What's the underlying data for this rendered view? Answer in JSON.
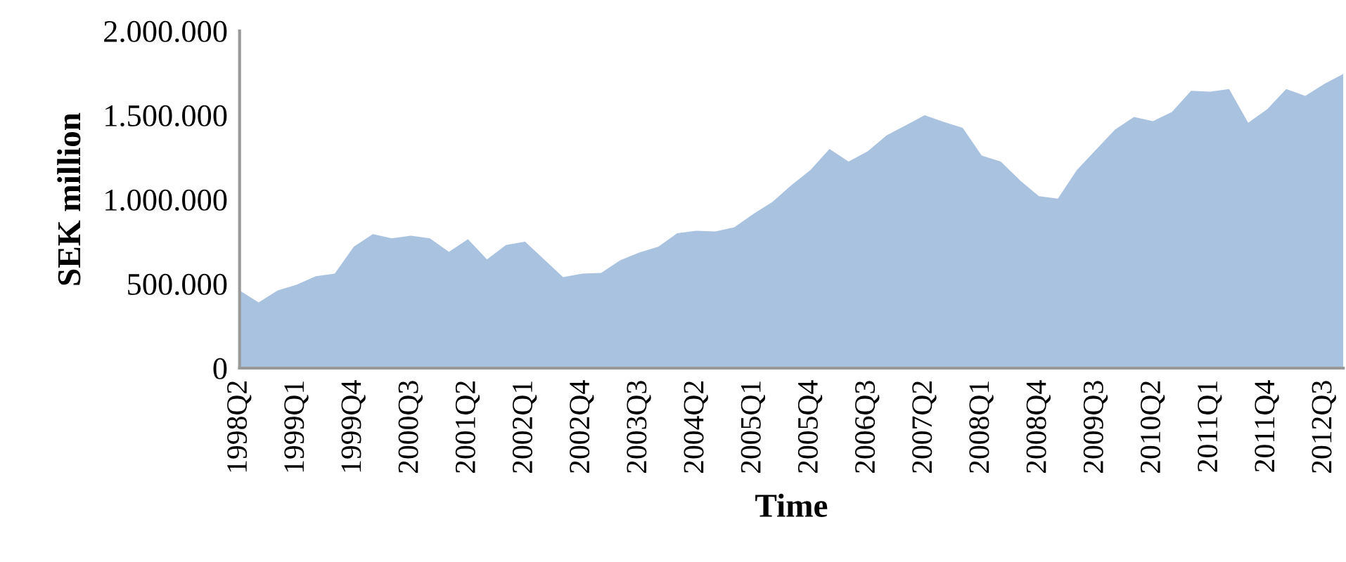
{
  "chart_data": {
    "type": "area",
    "xlabel": "Time",
    "ylabel": "SEK million",
    "categories": [
      "1998Q2",
      null,
      null,
      "1999Q1",
      null,
      null,
      "1999Q4",
      null,
      null,
      "2000Q3",
      null,
      null,
      "2001Q2",
      null,
      null,
      "2002Q1",
      null,
      null,
      "2002Q4",
      null,
      null,
      "2003Q3",
      null,
      null,
      "2004Q2",
      null,
      null,
      "2005Q1",
      null,
      null,
      "2005Q4",
      null,
      null,
      "2006Q3",
      null,
      null,
      "2007Q2",
      null,
      null,
      "2008Q1",
      null,
      null,
      "2008Q4",
      null,
      null,
      "2009Q3",
      null,
      null,
      "2010Q2",
      null,
      null,
      "2011Q1",
      null,
      null,
      "2011Q4",
      null,
      null,
      "2012Q3",
      null
    ],
    "series": [
      {
        "color": "#a9c2e0",
        "values": [
          460000,
          390000,
          460000,
          495000,
          545000,
          560000,
          720000,
          795000,
          770000,
          785000,
          770000,
          690000,
          765000,
          645000,
          730000,
          750000,
          645000,
          540000,
          560000,
          565000,
          640000,
          685000,
          720000,
          800000,
          815000,
          810000,
          835000,
          915000,
          985000,
          1085000,
          1175000,
          1300000,
          1225000,
          1285000,
          1380000,
          1440000,
          1500000,
          1460000,
          1425000,
          1260000,
          1225000,
          1115000,
          1020000,
          1005000,
          1175000,
          1295000,
          1415000,
          1490000,
          1465000,
          1520000,
          1645000,
          1640000,
          1655000,
          1455000,
          1535000,
          1655000,
          1615000,
          1685000,
          1745000
        ]
      }
    ],
    "ylim": [
      0,
      2000000
    ],
    "yticks": [
      0,
      {
        "value": 500000,
        "label": "500.000"
      },
      {
        "value": 1000000,
        "label": "1.000.000"
      },
      {
        "value": 1500000,
        "label": "1.500.000"
      },
      {
        "value": 2000000,
        "label": "2.000.000"
      }
    ]
  }
}
